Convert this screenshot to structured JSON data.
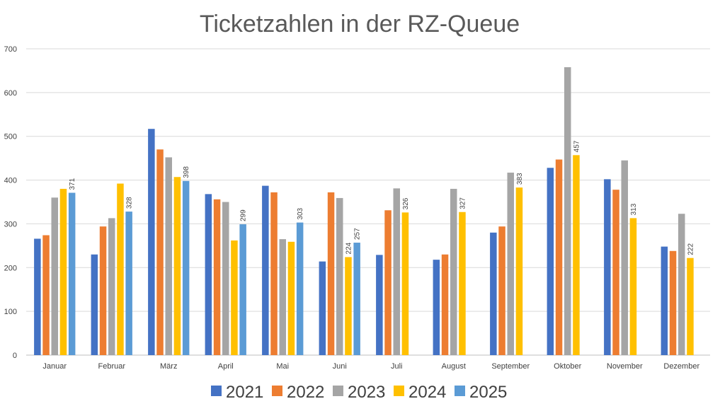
{
  "chart_data": {
    "type": "bar",
    "title": "Ticketzahlen in der RZ-Queue",
    "xlabel": "",
    "ylabel": "",
    "ylim": [
      0,
      700
    ],
    "yticks": [
      0,
      100,
      200,
      300,
      400,
      500,
      600,
      700
    ],
    "grid": true,
    "legend_position": "bottom",
    "categories": [
      "Januar",
      "Februar",
      "März",
      "April",
      "Mai",
      "Juni",
      "Juli",
      "August",
      "September",
      "Oktober",
      "November",
      "Dezember"
    ],
    "series": [
      {
        "name": "2021",
        "color": "#4472C4",
        "values": [
          266,
          230,
          517,
          368,
          387,
          214,
          229,
          218,
          280,
          428,
          402,
          248
        ]
      },
      {
        "name": "2022",
        "color": "#ED7D31",
        "values": [
          274,
          294,
          470,
          356,
          372,
          372,
          331,
          230,
          294,
          447,
          378,
          238
        ]
      },
      {
        "name": "2023",
        "color": "#A5A5A5",
        "values": [
          360,
          313,
          452,
          350,
          265,
          359,
          381,
          380,
          417,
          658,
          445,
          323
        ]
      },
      {
        "name": "2024",
        "color": "#FFC000",
        "values": [
          380,
          392,
          407,
          262,
          259,
          224,
          326,
          327,
          383,
          457,
          313,
          222
        ]
      },
      {
        "name": "2025",
        "color": "#5B9BD5",
        "values": [
          371,
          328,
          398,
          299,
          303,
          257,
          null,
          null,
          null,
          null,
          null,
          null
        ]
      }
    ],
    "data_labels": [
      {
        "category": "Januar",
        "series": "2025",
        "text": "371"
      },
      {
        "category": "Februar",
        "series": "2025",
        "text": "328"
      },
      {
        "category": "März",
        "series": "2025",
        "text": "398"
      },
      {
        "category": "April",
        "series": "2025",
        "text": "299"
      },
      {
        "category": "Mai",
        "series": "2025",
        "text": "303"
      },
      {
        "category": "Juni",
        "series": "2024",
        "text": "224"
      },
      {
        "category": "Juni",
        "series": "2025",
        "text": "257"
      },
      {
        "category": "Juli",
        "series": "2024",
        "text": "326"
      },
      {
        "category": "August",
        "series": "2024",
        "text": "327"
      },
      {
        "category": "September",
        "series": "2024",
        "text": "383"
      },
      {
        "category": "Oktober",
        "series": "2024",
        "text": "457"
      },
      {
        "category": "November",
        "series": "2024",
        "text": "313"
      },
      {
        "category": "Dezember",
        "series": "2024",
        "text": "222"
      }
    ]
  }
}
